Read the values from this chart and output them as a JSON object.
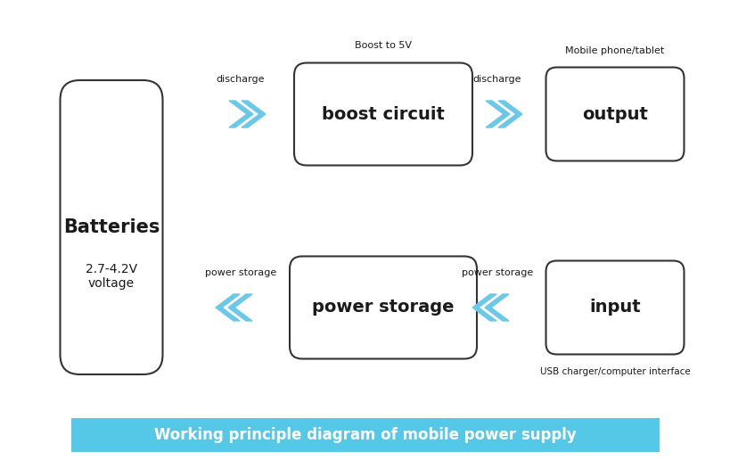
{
  "bg_color": "#ffffff",
  "arrow_color": "#6CC8E8",
  "box_edge_color": "#333333",
  "box_text_color": "#1a1a1a",
  "title_bg_color": "#55C8E8",
  "title_text_color": "#ffffff",
  "title_text": "Working principle diagram of mobile power supply",
  "batteries_label": "Batteries",
  "batteries_sublabel": "2.7-4.2V\nvoltage",
  "boost_label": "boost circuit",
  "boost_sublabel": "Boost to 5V",
  "output_label": "output",
  "output_sublabel": "Mobile phone/tablet",
  "power_storage_label": "power storage",
  "input_label": "input",
  "input_sublabel": "USB charger/computer interface",
  "discharge_label": "discharge",
  "power_storage_arrow_label": "power storage",
  "figsize": [
    8.19,
    5.25
  ],
  "dpi": 100,
  "xlim": [
    0,
    8.19
  ],
  "ylim": [
    0,
    5.25
  ]
}
